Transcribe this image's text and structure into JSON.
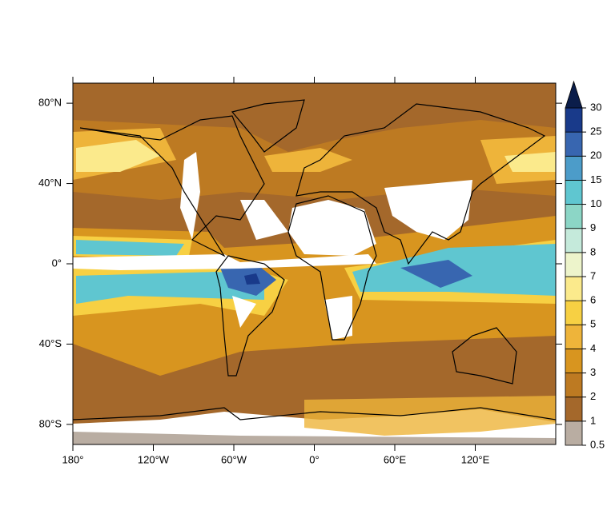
{
  "map": {
    "lon_ticks": [
      {
        "value": -180,
        "label": "180°"
      },
      {
        "value": -120,
        "label": "120°W"
      },
      {
        "value": -60,
        "label": "60°W"
      },
      {
        "value": 0,
        "label": "0°"
      },
      {
        "value": 60,
        "label": "60°E"
      },
      {
        "value": 120,
        "label": "120°E"
      }
    ],
    "lat_ticks": [
      {
        "value": 80,
        "label": "80°N"
      },
      {
        "value": 40,
        "label": "40°N"
      },
      {
        "value": 0,
        "label": "0°"
      },
      {
        "value": -40,
        "label": "40°S"
      },
      {
        "value": -80,
        "label": "80°S"
      }
    ],
    "xlim": [
      -180,
      180
    ],
    "ylim": [
      -90,
      90
    ]
  },
  "colorbar": {
    "levels": [
      0.5,
      1,
      2,
      3,
      4,
      5,
      6,
      7,
      8,
      9,
      10,
      15,
      20,
      25,
      30
    ],
    "colors": [
      "#b9ada2",
      "#a4682b",
      "#bd7a22",
      "#d8951f",
      "#eeb43a",
      "#f7d043",
      "#fbea8c",
      "#edf4cb",
      "#c5eadb",
      "#8cd6c6",
      "#5fc6d0",
      "#4c9cc9",
      "#3866b0",
      "#193a8a",
      "#0b1d4a"
    ]
  }
}
